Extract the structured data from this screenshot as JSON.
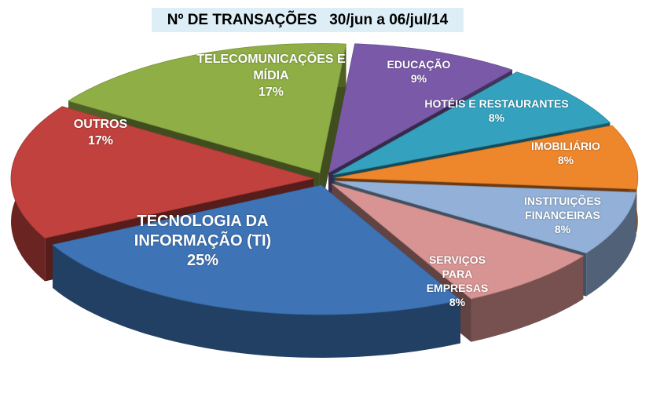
{
  "chart_data": {
    "type": "pie",
    "title": "Nº DE TRANSAÇÕES   30/jun a 06/jul/14",
    "slices": [
      {
        "label": "EDUCAÇÃO",
        "value": 9,
        "pct": "9%",
        "color": "#7a5aa8"
      },
      {
        "label": "HOTÉIS E RESTAURANTES",
        "value": 8,
        "pct": "8%",
        "color": "#34a2bf"
      },
      {
        "label": "IMOBILIÁRIO",
        "value": 8,
        "pct": "8%",
        "color": "#ee862c"
      },
      {
        "label": "INSTITUIÇÕES FINANCEIRAS",
        "value": 8,
        "pct": "8%",
        "color": "#93b1d8"
      },
      {
        "label": "SERVIÇOS PARA EMPRESAS",
        "value": 8,
        "pct": "8%",
        "color": "#d79492"
      },
      {
        "label": "TECNOLOGIA DA INFORMAÇÃO (TI)",
        "value": 25,
        "pct": "25%",
        "color": "#3e74b6"
      },
      {
        "label": "OUTROS",
        "value": 17,
        "pct": "17%",
        "color": "#c0413d"
      },
      {
        "label": "TELECOMUNICAÇÕES E MÍDIA",
        "value": 17,
        "pct": "17%",
        "color": "#8fae45"
      }
    ]
  }
}
